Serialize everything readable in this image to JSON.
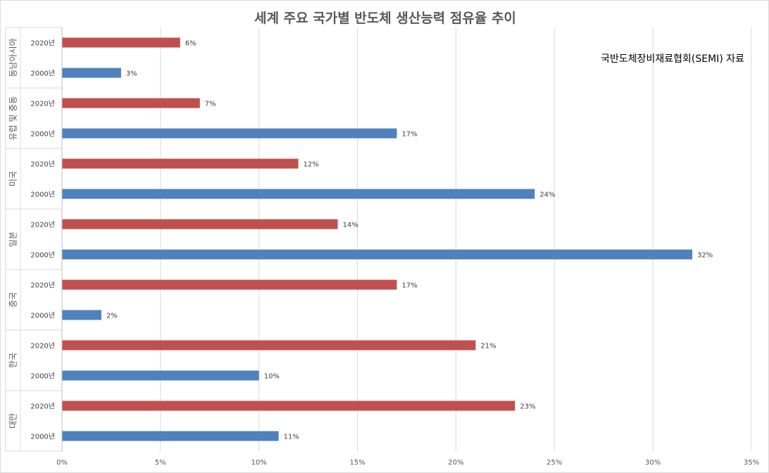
{
  "chart_data": {
    "type": "bar",
    "orientation": "horizontal",
    "title": "세계 주요 국가별 반도체 생산능력 점유율 추이",
    "annotation": "국반도체장비재료협회(SEMI) 자료",
    "groups": [
      {
        "name": "동남아시아",
        "bars": [
          {
            "year": "2020년",
            "value": 6,
            "label": "6%"
          },
          {
            "year": "2000년",
            "value": 3,
            "label": "3%"
          }
        ]
      },
      {
        "name": "유럽 및 중동",
        "bars": [
          {
            "year": "2020년",
            "value": 7,
            "label": "7%"
          },
          {
            "year": "2000년",
            "value": 17,
            "label": "17%"
          }
        ]
      },
      {
        "name": "미국",
        "bars": [
          {
            "year": "2020년",
            "value": 12,
            "label": "12%"
          },
          {
            "year": "2000년",
            "value": 24,
            "label": "24%"
          }
        ]
      },
      {
        "name": "일본",
        "bars": [
          {
            "year": "2020년",
            "value": 14,
            "label": "14%"
          },
          {
            "year": "2000년",
            "value": 32,
            "label": "32%"
          }
        ]
      },
      {
        "name": "중국",
        "bars": [
          {
            "year": "2020년",
            "value": 17,
            "label": "17%"
          },
          {
            "year": "2000년",
            "value": 2,
            "label": "2%"
          }
        ]
      },
      {
        "name": "한국",
        "bars": [
          {
            "year": "2020년",
            "value": 21,
            "label": "21%"
          },
          {
            "year": "2000년",
            "value": 10,
            "label": "10%"
          }
        ]
      },
      {
        "name": "대만",
        "bars": [
          {
            "year": "2020년",
            "value": 23,
            "label": "23%"
          },
          {
            "year": "2000년",
            "value": 11,
            "label": "11%"
          }
        ]
      }
    ],
    "xlim": [
      0,
      35
    ],
    "xticks": [
      0,
      5,
      10,
      15,
      20,
      25,
      30,
      35
    ],
    "xtick_labels": [
      "0%",
      "5%",
      "10%",
      "15%",
      "20%",
      "25%",
      "30%",
      "35%"
    ],
    "grid": "vertical",
    "legend": "none",
    "colors": {
      "2020년": "#c0504d",
      "2000년": "#4f81bd"
    }
  }
}
